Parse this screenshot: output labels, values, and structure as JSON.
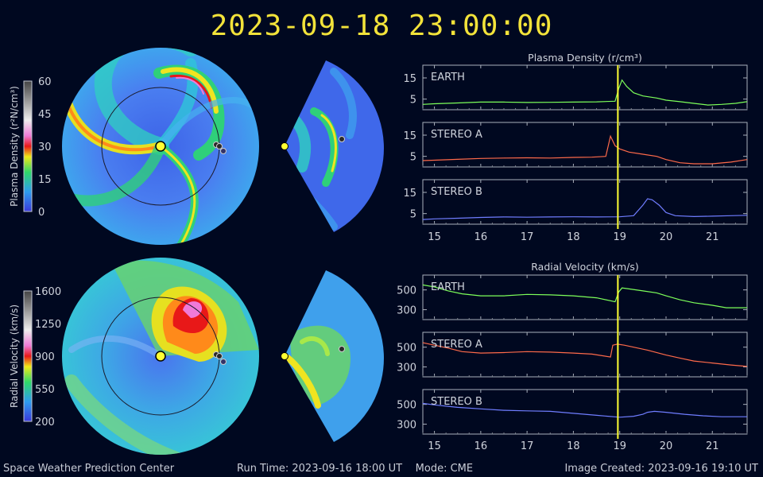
{
  "header": {
    "timestamp": "2023-09-18  23:00:00"
  },
  "footer": {
    "org": "Space Weather Prediction Center",
    "run_time": "Run Time: 2023-09-16 18:00 UT",
    "mode": "Mode: CME",
    "image_created": "Image Created: 2023-09-16 19:10 UT"
  },
  "colors": {
    "background": "#000820",
    "title": "#f3e33a",
    "earth": "#7dff5a",
    "stereo_a": "#ff6a4a",
    "stereo_b": "#6f7dff",
    "time_marker": "#ffff33"
  },
  "colorbars": [
    {
      "label": "Plasma Density (r²N/cm³)",
      "ticks": [
        "60",
        "45",
        "30",
        "15",
        "0"
      ]
    },
    {
      "label": "Radial Velocity (km/s)",
      "ticks": [
        "1600",
        "1250",
        "900",
        "550",
        "200"
      ]
    }
  ],
  "chart_data": [
    {
      "type": "line",
      "title": "Plasma Density (r/cm³)",
      "xlabel": "",
      "x_ticks": [
        "15",
        "16",
        "17",
        "18",
        "19",
        "20",
        "21"
      ],
      "xlim": [
        14.75,
        21.75
      ],
      "time_marker": 18.96,
      "panels": [
        {
          "name": "EARTH",
          "color": "#7dff5a",
          "ylim": [
            0,
            21
          ],
          "y_ticks": [
            15,
            5
          ],
          "x": [
            14.75,
            15,
            15.5,
            16,
            16.5,
            17,
            17.5,
            18,
            18.5,
            18.9,
            18.98,
            19.05,
            19.15,
            19.3,
            19.5,
            19.8,
            20,
            20.3,
            20.6,
            20.9,
            21.2,
            21.5,
            21.75
          ],
          "y": [
            2.5,
            2.8,
            3.2,
            3.6,
            3.6,
            3.4,
            3.5,
            3.6,
            3.7,
            4,
            10,
            14,
            11,
            8,
            6.5,
            5.5,
            4.5,
            3.8,
            3,
            2.2,
            2.5,
            3,
            3.8
          ]
        },
        {
          "name": "STEREO A",
          "color": "#ff6a4a",
          "ylim": [
            0,
            21
          ],
          "y_ticks": [
            15,
            5
          ],
          "x": [
            14.75,
            15,
            15.5,
            16,
            16.5,
            17,
            17.5,
            18,
            18.4,
            18.7,
            18.8,
            18.9,
            19,
            19.2,
            19.5,
            19.8,
            20,
            20.3,
            20.6,
            21,
            21.4,
            21.75
          ],
          "y": [
            3,
            3.2,
            3.6,
            4,
            4.2,
            4.3,
            4.2,
            4.5,
            4.6,
            5,
            14.5,
            10,
            8.5,
            7,
            6,
            5,
            3.5,
            2,
            1.5,
            1.5,
            2.3,
            3.5
          ]
        },
        {
          "name": "STEREO B",
          "color": "#6f7dff",
          "ylim": [
            0,
            21
          ],
          "y_ticks": [
            15,
            5
          ],
          "x": [
            14.75,
            15,
            15.5,
            16,
            16.5,
            17,
            17.5,
            18,
            18.5,
            19,
            19.3,
            19.5,
            19.6,
            19.7,
            19.85,
            20,
            20.2,
            20.6,
            21,
            21.4,
            21.75
          ],
          "y": [
            2.2,
            2.5,
            2.8,
            3.2,
            3.4,
            3.3,
            3.4,
            3.5,
            3.4,
            3.5,
            4,
            9,
            12,
            11.5,
            9,
            5.5,
            4,
            3.6,
            3.8,
            4,
            4.2
          ]
        }
      ]
    },
    {
      "type": "line",
      "title": "Radial Velocity (km/s)",
      "xlabel": "",
      "x_ticks": [
        "15",
        "16",
        "17",
        "18",
        "19",
        "20",
        "21"
      ],
      "xlim": [
        14.75,
        21.75
      ],
      "time_marker": 18.96,
      "panels": [
        {
          "name": "EARTH",
          "color": "#7dff5a",
          "ylim": [
            200,
            650
          ],
          "y_ticks": [
            500,
            300
          ],
          "x": [
            14.75,
            15,
            15.3,
            15.6,
            16,
            16.5,
            17,
            17.5,
            18,
            18.5,
            18.9,
            18.98,
            19.05,
            19.2,
            19.5,
            19.8,
            20,
            20.3,
            20.6,
            21,
            21.3,
            21.75
          ],
          "y": [
            550,
            530,
            490,
            460,
            440,
            440,
            455,
            450,
            440,
            420,
            380,
            480,
            520,
            510,
            490,
            470,
            440,
            400,
            370,
            345,
            320,
            320
          ]
        },
        {
          "name": "STEREO A",
          "color": "#ff6a4a",
          "ylim": [
            200,
            650
          ],
          "y_ticks": [
            500,
            300
          ],
          "x": [
            14.75,
            15,
            15.3,
            15.6,
            16,
            16.5,
            17,
            17.5,
            18,
            18.4,
            18.8,
            18.85,
            18.95,
            19.1,
            19.3,
            19.6,
            20,
            20.3,
            20.6,
            21,
            21.4,
            21.75
          ],
          "y": [
            545,
            520,
            490,
            455,
            440,
            445,
            455,
            450,
            440,
            430,
            400,
            520,
            530,
            520,
            500,
            470,
            420,
            390,
            360,
            340,
            320,
            305
          ]
        },
        {
          "name": "STEREO B",
          "color": "#6f7dff",
          "ylim": [
            200,
            650
          ],
          "y_ticks": [
            500,
            300
          ],
          "x": [
            14.75,
            15,
            15.5,
            16,
            16.5,
            17,
            17.5,
            18,
            18.5,
            19,
            19.3,
            19.5,
            19.6,
            19.75,
            20,
            20.4,
            20.8,
            21.2,
            21.5,
            21.75
          ],
          "y": [
            510,
            495,
            470,
            455,
            440,
            435,
            430,
            410,
            390,
            370,
            380,
            400,
            420,
            430,
            420,
            400,
            385,
            375,
            375,
            375
          ]
        }
      ]
    }
  ]
}
